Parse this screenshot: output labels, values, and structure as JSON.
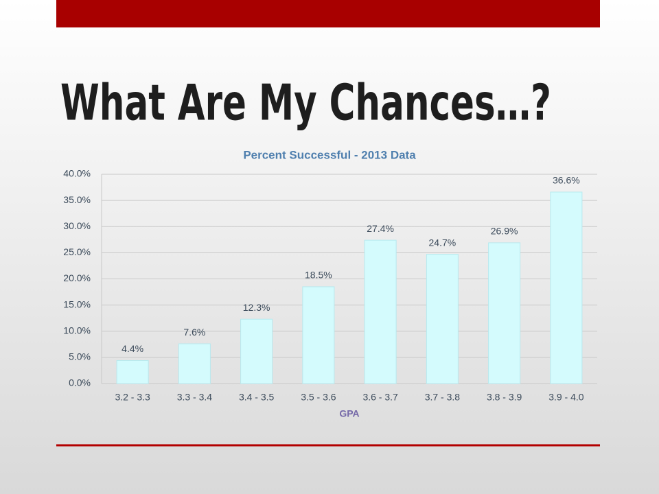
{
  "slide_title": "What Are My Chances…?",
  "chart_data": {
    "type": "bar",
    "title": "Percent Successful - 2013 Data",
    "x_label": "GPA",
    "categories": [
      "3.2 - 3.3",
      "3.3 - 3.4",
      "3.4 - 3.5",
      "3.5 - 3.6",
      "3.6 - 3.7",
      "3.7 - 3.8",
      "3.8 - 3.9",
      "3.9 - 4.0"
    ],
    "values": [
      4.4,
      7.6,
      12.3,
      18.5,
      27.4,
      24.7,
      26.9,
      36.6
    ],
    "value_labels": [
      "4.4%",
      "7.6%",
      "12.3%",
      "18.5%",
      "27.4%",
      "24.7%",
      "26.9%",
      "36.6%"
    ],
    "color": "#d4fbfd",
    "ylim": [
      0,
      40
    ],
    "yticks": [
      {
        "value": 0,
        "label": "0.0%"
      },
      {
        "value": 5,
        "label": "5.0%"
      },
      {
        "value": 10,
        "label": "10.0%"
      },
      {
        "value": 15,
        "label": "15.0%"
      },
      {
        "value": 20,
        "label": "20.0%"
      },
      {
        "value": 25,
        "label": "25.0%"
      },
      {
        "value": 30,
        "label": "30.0%"
      },
      {
        "value": 35,
        "label": "35.0%"
      },
      {
        "value": 40,
        "label": "40.0%"
      }
    ],
    "grid": true
  }
}
